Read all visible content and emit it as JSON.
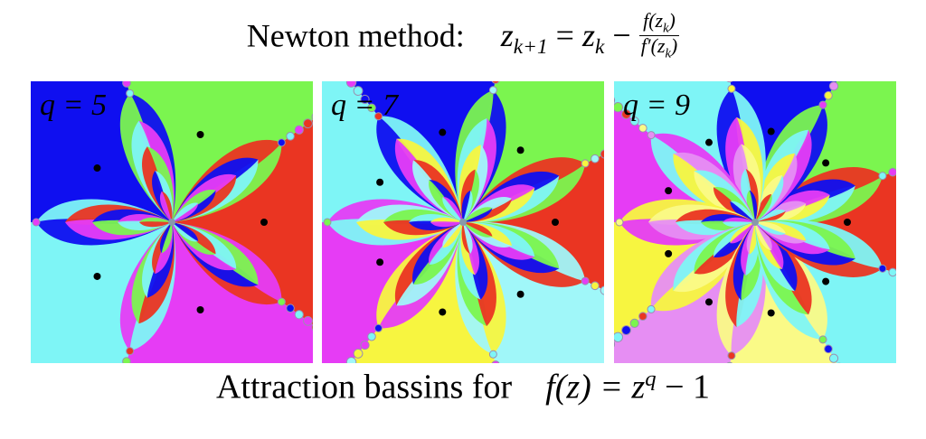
{
  "title": {
    "prefix": "Newton method:",
    "lhs": "z",
    "lhs_sub": "k+1",
    "eq": " = ",
    "rhs_var": "z",
    "rhs_sub": "k",
    "minus": " − ",
    "numerator": "f(z",
    "numerator_sub": "k",
    "numerator_close": ")",
    "denominator": "f′(z",
    "denominator_sub": "k",
    "denominator_close": ")"
  },
  "panels": [
    {
      "label": "q = 5",
      "q": 5,
      "colors": [
        "#ea3522",
        "#7bf54f",
        "#0f0ff0",
        "#7ef5f6",
        "#e63cf5"
      ]
    },
    {
      "label": "q = 7",
      "q": 7,
      "colors": [
        "#ea3522",
        "#7bf54f",
        "#0f0ff0",
        "#7ef5f6",
        "#e63cf5",
        "#f7f540",
        "#a0f7f9"
      ]
    },
    {
      "label": "q = 9",
      "q": 9,
      "colors": [
        "#ea3522",
        "#7bf54f",
        "#0f0ff0",
        "#7ef5f6",
        "#e63cf5",
        "#f7f540",
        "#e68ef3",
        "#fafa87",
        "#7ef5f6"
      ]
    }
  ],
  "caption": {
    "text": "Attraction bassins for",
    "func": "f(z) = z",
    "exp": "q",
    "tail": " − 1"
  }
}
